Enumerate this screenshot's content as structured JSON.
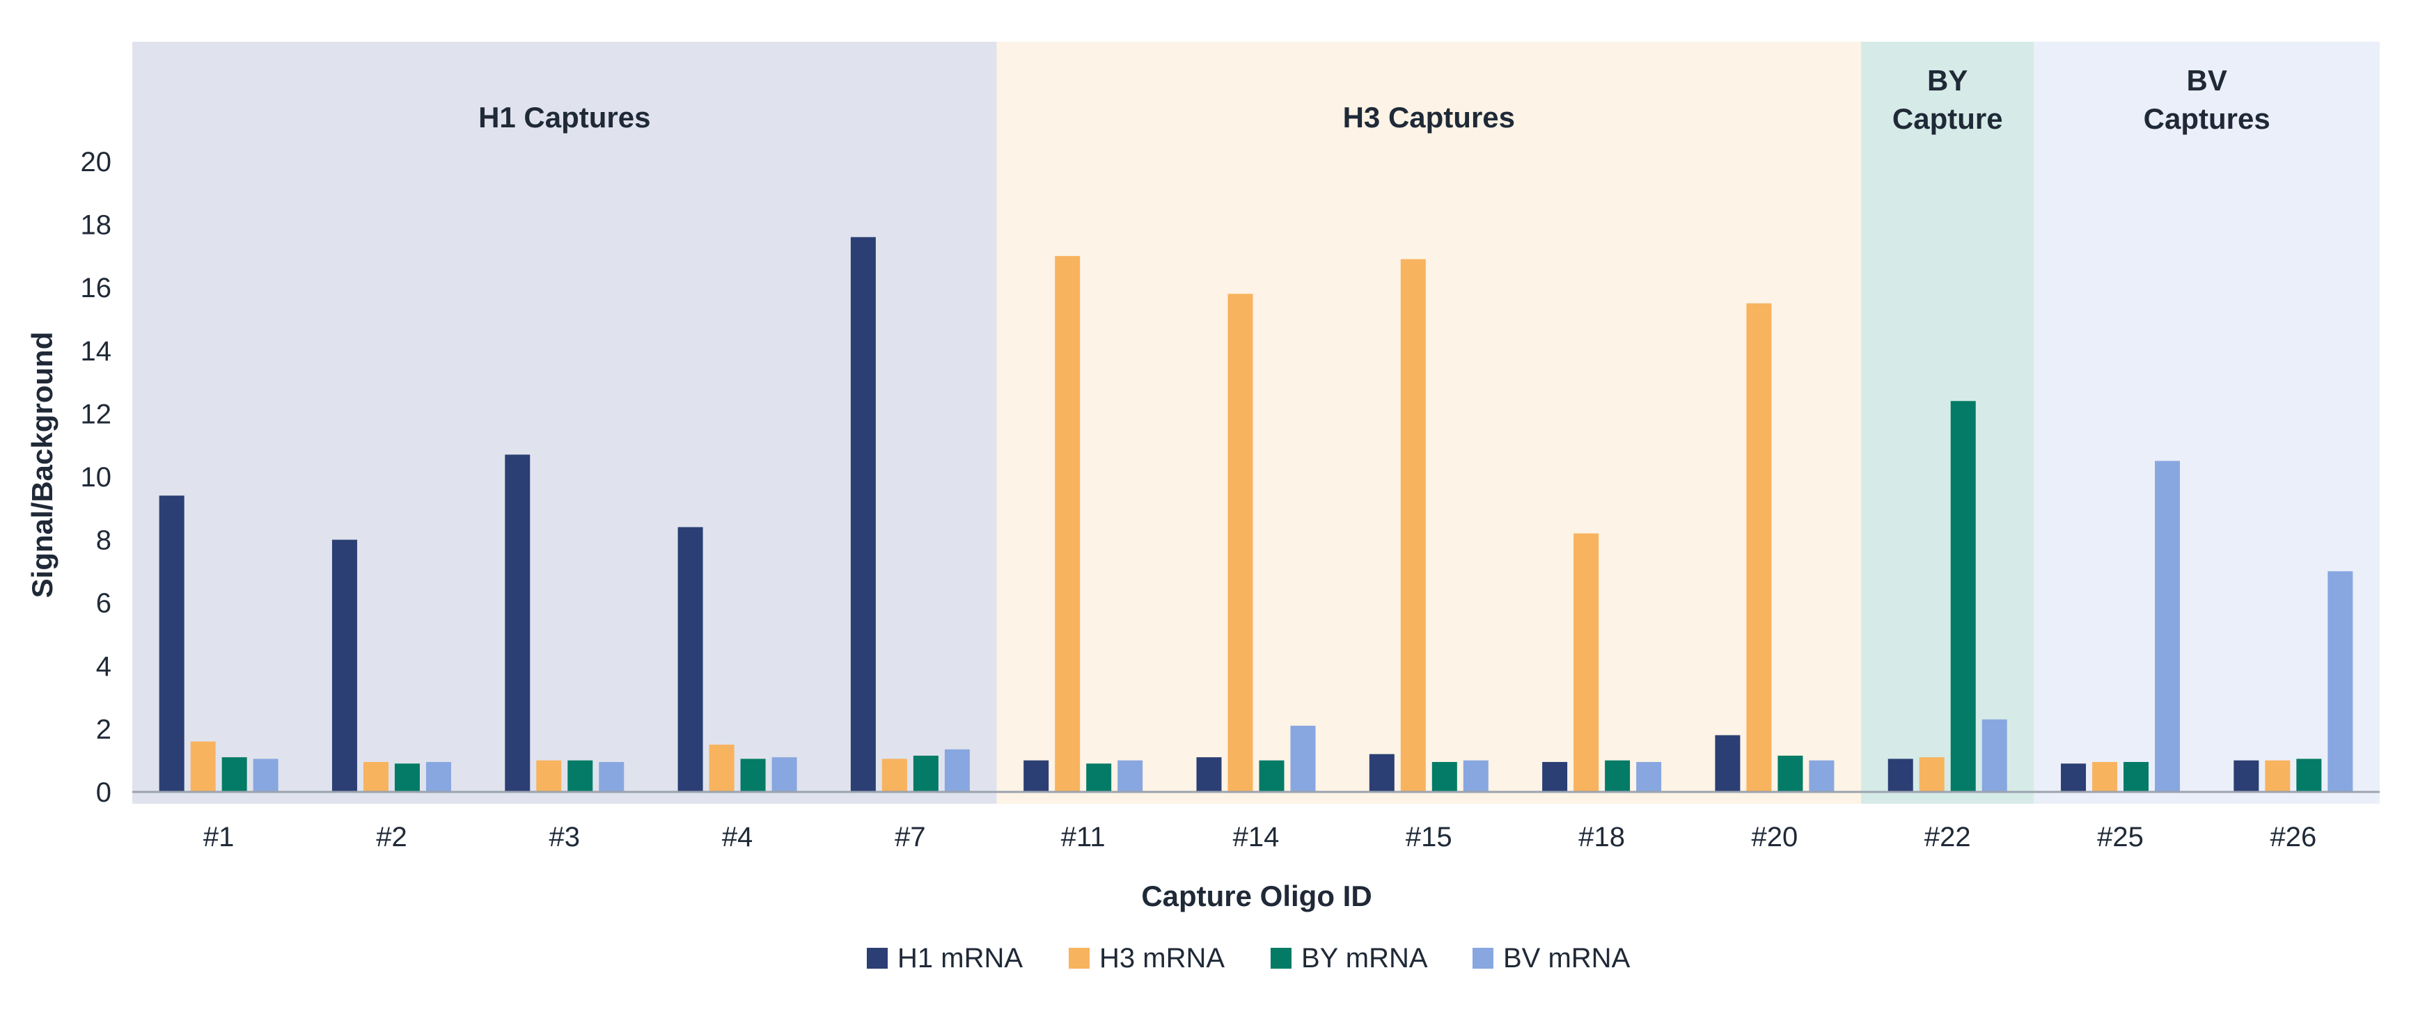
{
  "chart_data": {
    "type": "bar",
    "xlabel": "Capture Oligo ID",
    "ylabel": "Signal/Background",
    "ylim": [
      0,
      20
    ],
    "yticks": [
      "0",
      "2",
      "4",
      "6",
      "8",
      "10",
      "12",
      "14",
      "16",
      "18",
      "20"
    ],
    "categories": [
      "#1",
      "#2",
      "#3",
      "#4",
      "#7",
      "#11",
      "#14",
      "#15",
      "#18",
      "#20",
      "#22",
      "#25",
      "#26"
    ],
    "series": [
      {
        "name": "H1 mRNA",
        "color": "#2b3f74",
        "values": [
          9.4,
          8.0,
          10.7,
          8.4,
          17.6,
          1.0,
          1.1,
          1.2,
          0.95,
          1.8,
          1.05,
          0.9,
          1.0
        ]
      },
      {
        "name": "H3 mRNA",
        "color": "#f8b35e",
        "values": [
          1.6,
          0.95,
          1.0,
          1.5,
          1.05,
          17.0,
          15.8,
          16.9,
          8.2,
          15.5,
          1.1,
          0.95,
          1.0
        ]
      },
      {
        "name": "BY mRNA",
        "color": "#047b66",
        "values": [
          1.1,
          0.9,
          1.0,
          1.05,
          1.15,
          0.9,
          1.0,
          0.95,
          1.0,
          1.15,
          12.4,
          0.95,
          1.05
        ]
      },
      {
        "name": "BV mRNA",
        "color": "#88a7e0",
        "values": [
          1.05,
          0.95,
          0.95,
          1.1,
          1.35,
          1.0,
          2.1,
          1.0,
          0.95,
          1.0,
          2.3,
          10.5,
          7.0
        ]
      }
    ],
    "groups": [
      {
        "label_lines": [
          "H1 Captures"
        ],
        "start": 0,
        "end": 4,
        "color": "#e0e3ed"
      },
      {
        "label_lines": [
          "H3 Captures"
        ],
        "start": 5,
        "end": 9,
        "color": "#fdf3e6"
      },
      {
        "label_lines": [
          "BY",
          "Capture"
        ],
        "start": 10,
        "end": 10,
        "color": "#d6ebe7"
      },
      {
        "label_lines": [
          "BV",
          "Captures"
        ],
        "start": 11,
        "end": 12,
        "color": "#ebeff9"
      }
    ],
    "legend": {
      "position": "bottom-center"
    },
    "grid": false
  }
}
